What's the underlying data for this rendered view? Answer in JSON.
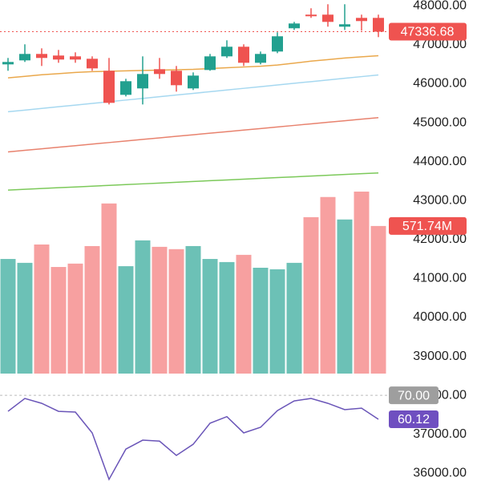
{
  "chart_data": {
    "type": "candlestick",
    "open": [
      46497,
      46600,
      46765,
      46724,
      46703,
      46641,
      46333,
      45715,
      45880,
      46374,
      46333,
      45880,
      46353,
      46703,
      46950,
      46538,
      46827,
      47424,
      47774,
      47774,
      47465,
      47691,
      47691
    ],
    "high": [
      46662,
      47012,
      46909,
      46868,
      46806,
      46703,
      46662,
      46127,
      46703,
      46662,
      46456,
      46291,
      46765,
      47115,
      47012,
      46827,
      47321,
      47588,
      47938,
      48041,
      48041,
      47774,
      47774
    ],
    "low": [
      46333,
      46559,
      46456,
      46538,
      46538,
      46333,
      45468,
      45674,
      45468,
      46127,
      45797,
      45839,
      46333,
      46662,
      46456,
      46497,
      46785,
      47382,
      47691,
      47465,
      47382,
      47362,
      47197
    ],
    "close": [
      46559,
      46765,
      46662,
      46621,
      46621,
      46394,
      45509,
      46065,
      46250,
      46250,
      45962,
      46209,
      46703,
      46950,
      46538,
      46765,
      47218,
      47547,
      47733,
      47588,
      47527,
      47609,
      47336.68
    ],
    "up_color": "#22a08f",
    "down_color": "#ef5350",
    "ylim": [
      35800,
      48150
    ],
    "yticks": [
      {
        "value": 48000,
        "label": "48000.00"
      },
      {
        "value": 47000,
        "label": "47000.00"
      },
      {
        "value": 46000,
        "label": "46000.00"
      },
      {
        "value": 45000,
        "label": "45000.00"
      },
      {
        "value": 44000,
        "label": "44000.00"
      },
      {
        "value": 43000,
        "label": "43000.00"
      },
      {
        "value": 42000,
        "label": "42000.00"
      },
      {
        "value": 41000,
        "label": "41000.00"
      },
      {
        "value": 40000,
        "label": "40000.00"
      },
      {
        "value": 39000,
        "label": "39000.00"
      },
      {
        "value": 38000,
        "label": "38000.00"
      },
      {
        "value": 37000,
        "label": "37000.00"
      },
      {
        "value": 36000,
        "label": "36000.00"
      }
    ],
    "series": [
      {
        "color": "#eaa84c",
        "values": [
          46150,
          46190,
          46230,
          46260,
          46290,
          46310,
          46320,
          46330,
          46340,
          46350,
          46360,
          46370,
          46390,
          46410,
          46430,
          46450,
          46480,
          46530,
          46580,
          46620,
          46660,
          46690,
          46720
        ]
      },
      {
        "color": "#a6d8f0",
        "values": [
          45280,
          45323,
          45366,
          45409,
          45452,
          45495,
          45538,
          45581,
          45624,
          45667,
          45710,
          45753,
          45796,
          45839,
          45882,
          45925,
          45968,
          46011,
          46054,
          46097,
          46140,
          46183,
          46226
        ]
      },
      {
        "color": "#e8826e",
        "values": [
          44250,
          44290,
          44330,
          44370,
          44410,
          44450,
          44490,
          44530,
          44570,
          44610,
          44650,
          44690,
          44730,
          44770,
          44810,
          44850,
          44890,
          44930,
          44970,
          45010,
          45050,
          45090,
          45130
        ]
      },
      {
        "color": "#7cc95a",
        "values": [
          43270,
          43290,
          43310,
          43330,
          43350,
          43370,
          43390,
          43410,
          43430,
          43450,
          43470,
          43490,
          43510,
          43530,
          43550,
          43570,
          43590,
          43610,
          43630,
          43650,
          43670,
          43690,
          43710
        ]
      }
    ],
    "volume": {
      "values": [
        444,
        429,
        500,
        413,
        426,
        494,
        659,
        416,
        516,
        491,
        482,
        494,
        444,
        432,
        460,
        410,
        404,
        429,
        606,
        684,
        597,
        705,
        571.74
      ],
      "value_labels": {
        "22": "571.74M"
      },
      "up_color": "#6cc1b6",
      "down_color": "#f7a0a0"
    },
    "rsi": {
      "values": [
        63.4,
        68.7,
        66.7,
        63.4,
        63.1,
        54.5,
        35.3,
        47.8,
        51.5,
        51.1,
        45.2,
        49.8,
        58.5,
        61.2,
        54.5,
        56.8,
        63.7,
        67.7,
        68.7,
        66.7,
        64.1,
        64.7,
        60.12
      ],
      "color": "#6a55b8",
      "ylim": [
        30,
        76
      ],
      "yticks": [
        {
          "value": 70,
          "label": "70.00"
        }
      ]
    }
  }
}
